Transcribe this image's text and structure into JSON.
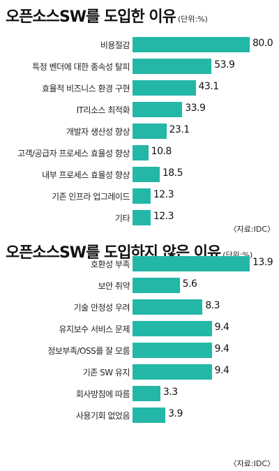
{
  "chart_data": [
    {
      "type": "bar",
      "orientation": "horizontal",
      "title": "오픈소스SW를 도입한 이유",
      "unit": "(단위:%)",
      "categories": [
        "비용절감",
        "특정 벤더에 대한 종속성 탈피",
        "효율적 비즈니스 환경 구현",
        "IT리소스 최적화",
        "개발자 생산성 향상",
        "고객/공급자 프로세스 효율성 향상",
        "내부 프로세스 효율성 향상",
        "기존 인프라 업그레이드",
        "기타"
      ],
      "values": [
        80.0,
        53.9,
        43.1,
        33.9,
        23.1,
        10.8,
        18.5,
        12.3,
        12.3
      ],
      "value_labels": [
        "80.0",
        "53.9",
        "43.1",
        "33.9",
        "23.1",
        "10.8",
        "18.5",
        "12.3",
        "12.3"
      ],
      "source": "〈자료:IDC〉",
      "xmax": 80
    },
    {
      "type": "bar",
      "orientation": "horizontal",
      "title": "오픈소스SW를 도입하지 않은 이유",
      "unit": "(단위:%)",
      "categories": [
        "호환성 부족",
        "보안 취약",
        "기술 안정성 우려",
        "유지보수 서비스 문제",
        "정보부족/OSS를 잘 모름",
        "기존 SW 유지",
        "회사방침에 따름",
        "사용기회 없었음"
      ],
      "values": [
        13.9,
        5.6,
        8.3,
        9.4,
        9.4,
        9.4,
        3.3,
        3.9
      ],
      "value_labels": [
        "13.9",
        "5.6",
        "8.3",
        "9.4",
        "9.4",
        "9.4",
        "3.3",
        "3.9"
      ],
      "source": "〈자료:IDC〉",
      "xmax": 13.9
    }
  ],
  "colors": {
    "bar": "#23b7a7"
  }
}
